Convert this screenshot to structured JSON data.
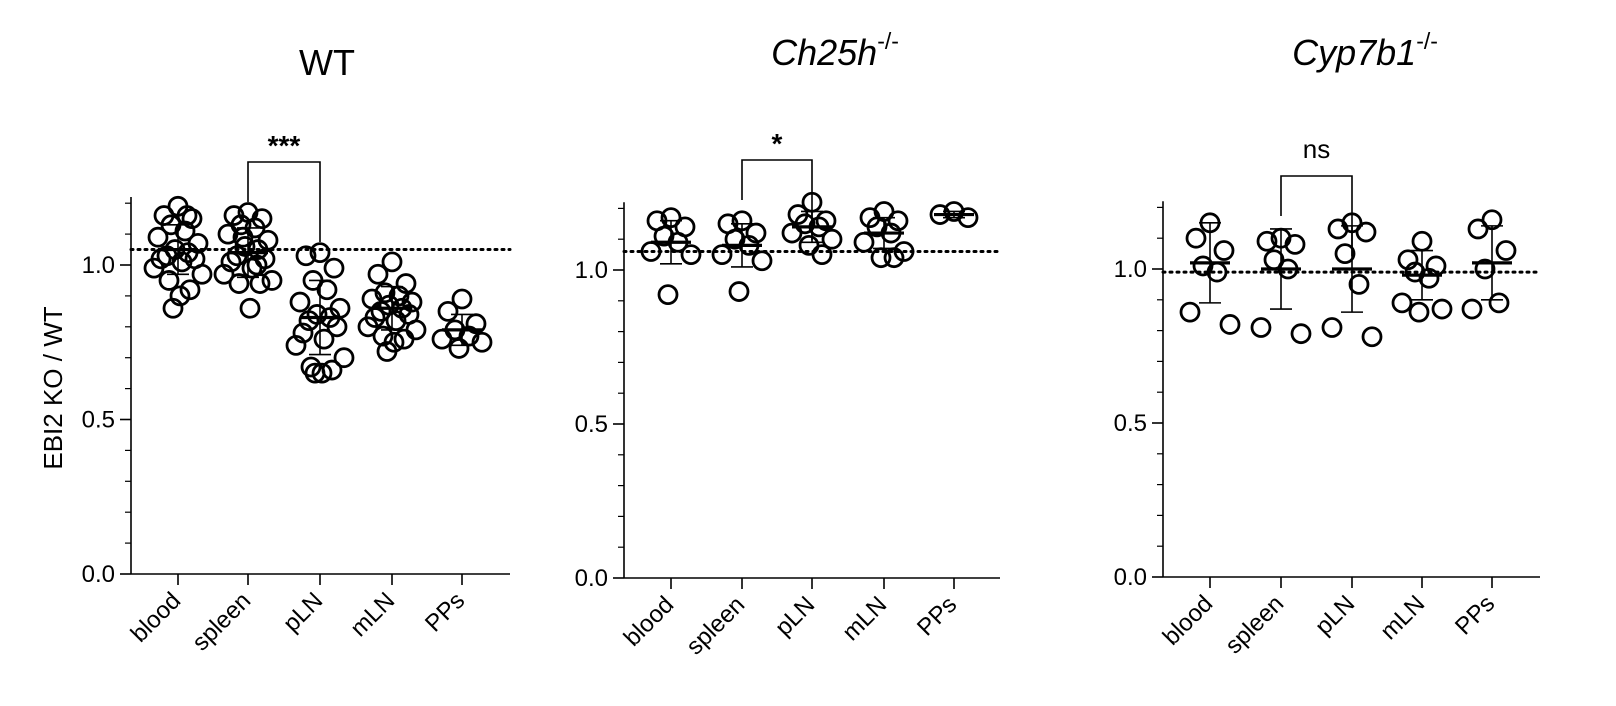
{
  "figure": {
    "ylabel": "EBI2 KO / WT"
  },
  "chart_data": [
    {
      "type": "scatter",
      "title": "WT",
      "title_italic": false,
      "title_sup": "",
      "categories": [
        "blood",
        "spleen",
        "pLN",
        "mLN",
        "PPs"
      ],
      "ylim": [
        0,
        1.22
      ],
      "yticks": [
        0.0,
        0.5,
        1.0
      ],
      "ytick_labels": [
        "0.0",
        "0.5",
        "1.0"
      ],
      "reference_line": 1.05,
      "points": [
        [
          1.19,
          1.16,
          1.15,
          1.13,
          1.11,
          1.09,
          1.07,
          1.05,
          1.04,
          1.03,
          1.02,
          1.02,
          1.01,
          0.99,
          0.97,
          0.95,
          0.92,
          0.9,
          0.86,
          1.16
        ],
        [
          1.17,
          1.16,
          1.15,
          1.13,
          1.12,
          1.1,
          1.08,
          1.06,
          1.05,
          1.03,
          1.02,
          1.01,
          0.99,
          0.97,
          0.95,
          0.94,
          0.94,
          0.86,
          1.09,
          1.0
        ],
        [
          1.04,
          1.03,
          0.99,
          0.95,
          0.92,
          0.88,
          0.86,
          0.84,
          0.83,
          0.82,
          0.8,
          0.78,
          0.76,
          0.74,
          0.7,
          0.67,
          0.66,
          0.65,
          0.65
        ],
        [
          1.01,
          0.97,
          0.94,
          0.91,
          0.9,
          0.89,
          0.88,
          0.87,
          0.86,
          0.85,
          0.84,
          0.83,
          0.82,
          0.8,
          0.79,
          0.77,
          0.76,
          0.75,
          0.72
        ],
        [
          0.89,
          0.85,
          0.81,
          0.79,
          0.77,
          0.76,
          0.75,
          0.73
        ]
      ],
      "means": [
        1.05,
        1.04,
        0.83,
        0.86,
        0.79
      ],
      "sd": [
        0.08,
        0.08,
        0.12,
        0.07,
        0.05
      ],
      "comparison": {
        "from": "spleen",
        "to": "pLN",
        "label": "***"
      }
    },
    {
      "type": "scatter",
      "title": "Ch25h",
      "title_italic": true,
      "title_sup": "-/-",
      "categories": [
        "blood",
        "spleen",
        "pLN",
        "mLN",
        "PPs"
      ],
      "ylim": [
        0,
        1.22
      ],
      "yticks": [
        0.0,
        0.5,
        1.0
      ],
      "ytick_labels": [
        "0.0",
        "0.5",
        "1.0"
      ],
      "reference_line": 1.06,
      "points": [
        [
          1.17,
          1.16,
          1.14,
          1.11,
          1.09,
          1.06,
          1.05,
          0.92
        ],
        [
          1.16,
          1.15,
          1.12,
          1.1,
          1.08,
          1.05,
          1.03,
          0.93
        ],
        [
          1.22,
          1.18,
          1.16,
          1.15,
          1.14,
          1.12,
          1.1,
          1.08,
          1.05
        ],
        [
          1.19,
          1.17,
          1.16,
          1.14,
          1.12,
          1.09,
          1.06,
          1.04,
          1.04
        ],
        [
          1.19,
          1.18,
          1.17
        ]
      ],
      "means": [
        1.09,
        1.08,
        1.14,
        1.12,
        1.18
      ],
      "sd": [
        0.07,
        0.07,
        0.05,
        0.05,
        0.01
      ],
      "comparison": {
        "from": "spleen",
        "to": "pLN",
        "label": "*"
      }
    },
    {
      "type": "scatter",
      "title": "Cyp7b1",
      "title_italic": true,
      "title_sup": "-/-",
      "categories": [
        "blood",
        "spleen",
        "pLN",
        "mLN",
        "PPs"
      ],
      "ylim": [
        0,
        1.22
      ],
      "yticks": [
        0.0,
        0.5,
        1.0
      ],
      "ytick_labels": [
        "0.0",
        "0.5",
        "1.0"
      ],
      "reference_line": 0.99,
      "points": [
        [
          1.15,
          1.1,
          1.06,
          1.01,
          0.99,
          0.86,
          0.82
        ],
        [
          1.1,
          1.09,
          1.08,
          1.03,
          1.0,
          0.81,
          0.79
        ],
        [
          1.15,
          1.13,
          1.12,
          1.05,
          0.95,
          0.81,
          0.78
        ],
        [
          1.09,
          1.03,
          1.01,
          0.99,
          0.97,
          0.89,
          0.87,
          0.86
        ],
        [
          1.16,
          1.13,
          1.06,
          1.0,
          0.89,
          0.87
        ]
      ],
      "means": [
        1.02,
        1.0,
        1.0,
        0.98,
        1.02
      ],
      "sd": [
        0.13,
        0.13,
        0.14,
        0.08,
        0.12
      ],
      "comparison": {
        "from": "spleen",
        "to": "pLN",
        "label": "ns"
      }
    }
  ]
}
